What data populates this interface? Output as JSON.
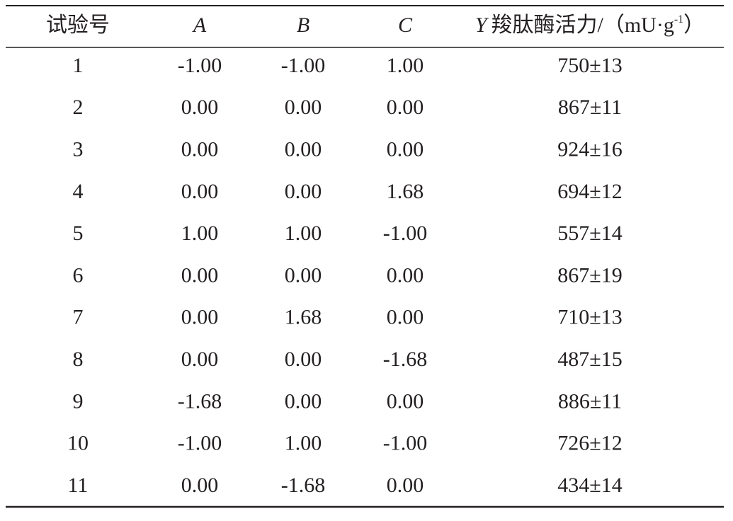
{
  "table": {
    "header": [
      "试验号",
      "A",
      "B",
      "C"
    ],
    "last_header": {
      "var": "Y",
      "label": "羧肽酶活力/（mU·g",
      "sup": "-1",
      "close": "）"
    },
    "rows": [
      [
        "1",
        "-1.00",
        "-1.00",
        "1.00",
        "750±13"
      ],
      [
        "2",
        "0.00",
        "0.00",
        "0.00",
        "867±11"
      ],
      [
        "3",
        "0.00",
        "0.00",
        "0.00",
        "924±16"
      ],
      [
        "4",
        "0.00",
        "0.00",
        "1.68",
        "694±12"
      ],
      [
        "5",
        "1.00",
        "1.00",
        "-1.00",
        "557±14"
      ],
      [
        "6",
        "0.00",
        "0.00",
        "0.00",
        "867±19"
      ],
      [
        "7",
        "0.00",
        "1.68",
        "0.00",
        "710±13"
      ],
      [
        "8",
        "0.00",
        "0.00",
        "-1.68",
        "487±15"
      ],
      [
        "9",
        "-1.68",
        "0.00",
        "0.00",
        "886±11"
      ],
      [
        "10",
        "-1.00",
        "1.00",
        "-1.00",
        "726±12"
      ],
      [
        "11",
        "0.00",
        "-1.68",
        "0.00",
        "434±14"
      ]
    ]
  }
}
